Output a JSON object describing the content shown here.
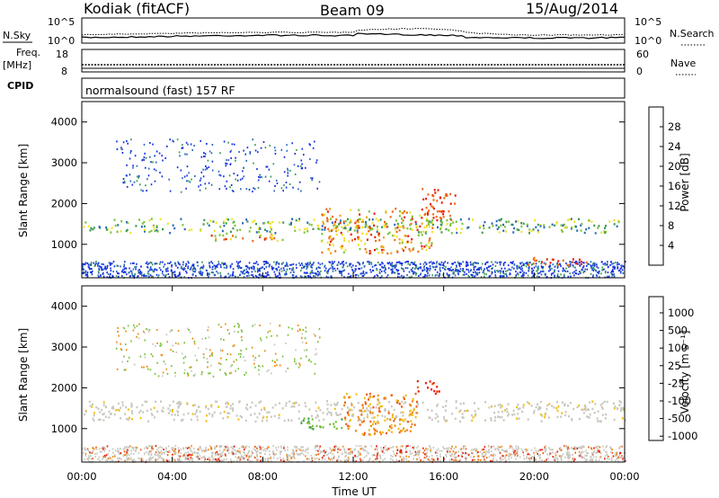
{
  "header": {
    "station": "Kodiak (fitACF)",
    "beam": "Beam 09",
    "date": "15/Aug/2014"
  },
  "strips": {
    "nsky_label": "N.Sky",
    "nsky_ticks": [
      "10^5",
      "10^0"
    ],
    "nsearch_label": "N.Search",
    "freq_label": "Freq.",
    "freq_unit": "[MHz]",
    "freq_ticks": [
      "18",
      "8"
    ],
    "nave_label": "Nave",
    "nave_ticks": [
      "60",
      "0"
    ],
    "cpid_label": "CPID",
    "cpid_value": "normalsound (fast) 157 RF"
  },
  "colors": {
    "power": [
      "#1530e0",
      "#2a6ab8",
      "#3c9a52",
      "#7cc23a",
      "#f0e22a",
      "#f0a01a",
      "#f06a10",
      "#e81a0a"
    ],
    "velocity": [
      "#2a3cb8",
      "#3a78a8",
      "#3c9a52",
      "#7cc23a",
      "#c8c8c0",
      "#c8c8c0",
      "#f0c01a",
      "#f08a10",
      "#f05a10",
      "#e81a0a"
    ]
  },
  "chart_data": [
    {
      "type": "heatmap",
      "name": "power",
      "ylabel": "Slant Range [km]",
      "ylim": [
        180,
        4500
      ],
      "yticks": [
        "1000",
        "2000",
        "3000",
        "4000"
      ],
      "xlim": [
        "00:00",
        "24:00"
      ],
      "colorbar": {
        "label": "Power [dB]",
        "ticks": [
          "4",
          "8",
          "12",
          "16",
          "20",
          "24",
          "28"
        ],
        "range": [
          0,
          32
        ]
      },
      "features": [
        {
          "start_h": 0.0,
          "end_h": 24.0,
          "range_km": [
            1300,
            1650
          ],
          "level": "green-yellow"
        },
        {
          "start_h": 5.5,
          "end_h": 9.0,
          "range_km": [
            1100,
            1300
          ],
          "level": "orange-red"
        },
        {
          "start_h": 10.5,
          "end_h": 15.5,
          "range_km": [
            800,
            1900
          ],
          "level": "orange-red"
        },
        {
          "start_h": 15.0,
          "end_h": 16.5,
          "range_km": [
            1600,
            2400
          ],
          "level": "red"
        },
        {
          "start_h": 19.5,
          "end_h": 22.5,
          "range_km": [
            500,
            700
          ],
          "level": "red"
        }
      ]
    },
    {
      "type": "heatmap",
      "name": "velocity",
      "ylabel": "Slant Range [km]",
      "xlabel": "Time UT",
      "ylim": [
        180,
        4500
      ],
      "yticks": [
        "1000",
        "2000",
        "3000",
        "4000"
      ],
      "xticks": [
        "00:00",
        "04:00",
        "08:00",
        "12:00",
        "16:00",
        "20:00",
        "00:00"
      ],
      "colorbar": {
        "label": "Velocity [m s⁻¹]",
        "ticks": [
          "1000",
          "500",
          "100",
          "25",
          "-25",
          "-100",
          "-500",
          "-1000"
        ],
        "range": [
          -1000,
          1000
        ]
      },
      "features": [
        {
          "start_h": 0.0,
          "end_h": 24.0,
          "range_km": [
            1200,
            1700
          ],
          "level": "ground scatter"
        },
        {
          "start_h": 11.5,
          "end_h": 14.8,
          "range_km": [
            850,
            1900
          ],
          "level": "-500"
        },
        {
          "start_h": 14.8,
          "end_h": 15.8,
          "range_km": [
            1850,
            2200
          ],
          "level": "-1000"
        },
        {
          "start_h": 9.5,
          "end_h": 11.5,
          "range_km": [
            1000,
            1300
          ],
          "level": "100"
        }
      ]
    }
  ]
}
